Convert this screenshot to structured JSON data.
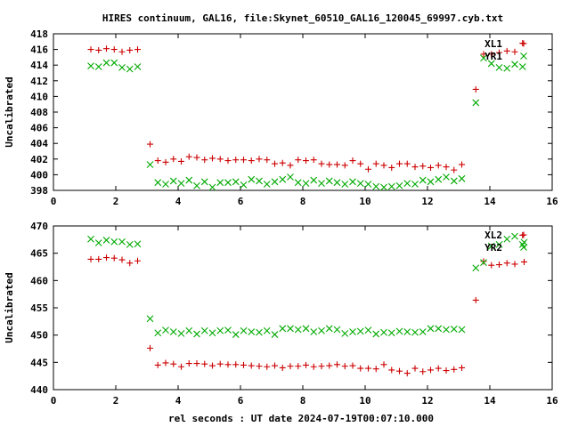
{
  "figure": {
    "title": "HIRES continuum, GAL16, file:Skynet_60510_GAL16_120045_69997.cyb.txt",
    "xlabel": "rel seconds : UT date 2024-07-19T00:07:10.000"
  },
  "colors": {
    "XL1": "#cc0000",
    "YR1": "#00aa00",
    "XL2": "#cc0000",
    "YR2": "#00aa00"
  },
  "chart_data": [
    {
      "type": "scatter",
      "title": "",
      "xlabel": "",
      "ylabel": "Uncalibrated",
      "xlim": [
        0,
        16
      ],
      "ylim": [
        398,
        418
      ],
      "xticks": [
        0,
        2,
        4,
        6,
        8,
        10,
        12,
        14,
        16
      ],
      "yticks": [
        398,
        400,
        402,
        404,
        406,
        408,
        410,
        412,
        414,
        416,
        418
      ],
      "grid": false,
      "legend": "top-right",
      "series": [
        {
          "name": "XL1",
          "marker": "plus",
          "points": [
            [
              1.2,
              416.0
            ],
            [
              1.45,
              415.9
            ],
            [
              1.7,
              416.1
            ],
            [
              1.95,
              416.0
            ],
            [
              2.2,
              415.7
            ],
            [
              2.45,
              415.9
            ],
            [
              2.7,
              416.0
            ],
            [
              3.1,
              403.9
            ],
            [
              3.35,
              401.8
            ],
            [
              3.6,
              401.6
            ],
            [
              3.85,
              402.0
            ],
            [
              4.1,
              401.7
            ],
            [
              4.35,
              402.3
            ],
            [
              4.6,
              402.2
            ],
            [
              4.85,
              401.9
            ],
            [
              5.1,
              402.1
            ],
            [
              5.35,
              402.0
            ],
            [
              5.6,
              401.8
            ],
            [
              5.85,
              401.9
            ],
            [
              6.1,
              401.9
            ],
            [
              6.35,
              401.8
            ],
            [
              6.6,
              402.0
            ],
            [
              6.85,
              401.9
            ],
            [
              7.1,
              401.4
            ],
            [
              7.35,
              401.5
            ],
            [
              7.6,
              401.2
            ],
            [
              7.85,
              401.9
            ],
            [
              8.1,
              401.8
            ],
            [
              8.35,
              401.9
            ],
            [
              8.6,
              401.4
            ],
            [
              8.85,
              401.3
            ],
            [
              9.1,
              401.3
            ],
            [
              9.35,
              401.2
            ],
            [
              9.6,
              401.8
            ],
            [
              9.85,
              401.4
            ],
            [
              10.1,
              400.7
            ],
            [
              10.35,
              401.4
            ],
            [
              10.6,
              401.2
            ],
            [
              10.85,
              400.9
            ],
            [
              11.1,
              401.4
            ],
            [
              11.35,
              401.4
            ],
            [
              11.6,
              401.0
            ],
            [
              11.85,
              401.1
            ],
            [
              12.1,
              400.9
            ],
            [
              12.35,
              401.2
            ],
            [
              12.6,
              401.0
            ],
            [
              12.85,
              400.6
            ],
            [
              13.1,
              401.3
            ],
            [
              13.55,
              410.9
            ],
            [
              13.8,
              415.4
            ],
            [
              14.05,
              415.4
            ],
            [
              14.3,
              415.6
            ],
            [
              14.55,
              415.8
            ],
            [
              14.8,
              415.7
            ],
            [
              15.05,
              416.8
            ]
          ]
        },
        {
          "name": "YR1",
          "marker": "cross",
          "points": [
            [
              1.2,
              413.9
            ],
            [
              1.45,
              413.8
            ],
            [
              1.7,
              414.3
            ],
            [
              1.95,
              414.3
            ],
            [
              2.2,
              413.7
            ],
            [
              2.45,
              413.5
            ],
            [
              2.7,
              413.8
            ],
            [
              3.1,
              401.3
            ],
            [
              3.35,
              399.0
            ],
            [
              3.6,
              398.8
            ],
            [
              3.85,
              399.2
            ],
            [
              4.1,
              398.9
            ],
            [
              4.35,
              399.3
            ],
            [
              4.6,
              398.6
            ],
            [
              4.85,
              399.1
            ],
            [
              5.1,
              398.4
            ],
            [
              5.35,
              399.0
            ],
            [
              5.6,
              399.0
            ],
            [
              5.85,
              399.1
            ],
            [
              6.1,
              398.7
            ],
            [
              6.35,
              399.4
            ],
            [
              6.6,
              399.2
            ],
            [
              6.85,
              398.8
            ],
            [
              7.1,
              399.1
            ],
            [
              7.35,
              399.4
            ],
            [
              7.6,
              399.7
            ],
            [
              7.85,
              399.0
            ],
            [
              8.1,
              398.9
            ],
            [
              8.35,
              399.3
            ],
            [
              8.6,
              398.9
            ],
            [
              8.85,
              399.2
            ],
            [
              9.1,
              399.0
            ],
            [
              9.35,
              398.8
            ],
            [
              9.6,
              399.1
            ],
            [
              9.85,
              398.9
            ],
            [
              10.1,
              398.8
            ],
            [
              10.35,
              398.5
            ],
            [
              10.6,
              398.4
            ],
            [
              10.85,
              398.5
            ],
            [
              11.1,
              398.6
            ],
            [
              11.35,
              398.9
            ],
            [
              11.6,
              398.8
            ],
            [
              11.85,
              399.3
            ],
            [
              12.1,
              399.1
            ],
            [
              12.35,
              399.4
            ],
            [
              12.6,
              399.7
            ],
            [
              12.85,
              399.2
            ],
            [
              13.1,
              399.5
            ],
            [
              13.55,
              409.2
            ],
            [
              13.8,
              414.9
            ],
            [
              14.05,
              414.2
            ],
            [
              14.3,
              413.7
            ],
            [
              14.55,
              413.6
            ],
            [
              14.8,
              414.1
            ],
            [
              15.05,
              413.8
            ]
          ]
        }
      ]
    },
    {
      "type": "scatter",
      "title": "",
      "xlabel": "rel seconds : UT date 2024-07-19T00:07:10.000",
      "ylabel": "Uncalibrated",
      "xlim": [
        0,
        16
      ],
      "ylim": [
        440,
        470
      ],
      "xticks": [
        0,
        2,
        4,
        6,
        8,
        10,
        12,
        14,
        16
      ],
      "yticks": [
        440,
        445,
        450,
        455,
        460,
        465,
        470
      ],
      "grid": false,
      "legend": "top-right",
      "series": [
        {
          "name": "XL2",
          "marker": "plus",
          "points": [
            [
              1.2,
              463.9
            ],
            [
              1.45,
              463.9
            ],
            [
              1.7,
              464.2
            ],
            [
              1.95,
              464.1
            ],
            [
              2.2,
              463.8
            ],
            [
              2.45,
              463.2
            ],
            [
              2.7,
              463.6
            ],
            [
              3.1,
              447.6
            ],
            [
              3.35,
              444.5
            ],
            [
              3.6,
              444.9
            ],
            [
              3.85,
              444.7
            ],
            [
              4.1,
              444.2
            ],
            [
              4.35,
              444.8
            ],
            [
              4.6,
              444.8
            ],
            [
              4.85,
              444.7
            ],
            [
              5.1,
              444.4
            ],
            [
              5.35,
              444.7
            ],
            [
              5.6,
              444.6
            ],
            [
              5.85,
              444.6
            ],
            [
              6.1,
              444.5
            ],
            [
              6.35,
              444.4
            ],
            [
              6.6,
              444.3
            ],
            [
              6.85,
              444.2
            ],
            [
              7.1,
              444.4
            ],
            [
              7.35,
              444.0
            ],
            [
              7.6,
              444.3
            ],
            [
              7.85,
              444.3
            ],
            [
              8.1,
              444.5
            ],
            [
              8.35,
              444.2
            ],
            [
              8.6,
              444.3
            ],
            [
              8.85,
              444.4
            ],
            [
              9.1,
              444.6
            ],
            [
              9.35,
              444.3
            ],
            [
              9.6,
              444.4
            ],
            [
              9.85,
              443.9
            ],
            [
              10.1,
              443.9
            ],
            [
              10.35,
              443.8
            ],
            [
              10.6,
              444.6
            ],
            [
              10.85,
              443.6
            ],
            [
              11.1,
              443.4
            ],
            [
              11.35,
              443.0
            ],
            [
              11.6,
              443.9
            ],
            [
              11.85,
              443.3
            ],
            [
              12.1,
              443.6
            ],
            [
              12.35,
              443.9
            ],
            [
              12.6,
              443.5
            ],
            [
              12.85,
              443.7
            ],
            [
              13.1,
              444.0
            ],
            [
              13.55,
              456.4
            ],
            [
              13.8,
              463.5
            ],
            [
              14.05,
              462.8
            ],
            [
              14.3,
              462.9
            ],
            [
              14.55,
              463.2
            ],
            [
              14.8,
              463.0
            ],
            [
              15.05,
              468.3
            ],
            [
              15.1,
              463.4
            ]
          ]
        },
        {
          "name": "YR2",
          "marker": "cross",
          "points": [
            [
              1.2,
              467.6
            ],
            [
              1.45,
              466.9
            ],
            [
              1.7,
              467.4
            ],
            [
              1.95,
              467.1
            ],
            [
              2.2,
              467.1
            ],
            [
              2.45,
              466.6
            ],
            [
              2.7,
              466.7
            ],
            [
              3.1,
              453.0
            ],
            [
              3.35,
              450.4
            ],
            [
              3.6,
              450.9
            ],
            [
              3.85,
              450.6
            ],
            [
              4.1,
              450.3
            ],
            [
              4.35,
              450.8
            ],
            [
              4.6,
              450.2
            ],
            [
              4.85,
              450.8
            ],
            [
              5.1,
              450.4
            ],
            [
              5.35,
              450.8
            ],
            [
              5.6,
              450.9
            ],
            [
              5.85,
              450.1
            ],
            [
              6.1,
              450.8
            ],
            [
              6.35,
              450.6
            ],
            [
              6.6,
              450.5
            ],
            [
              6.85,
              450.8
            ],
            [
              7.1,
              450.1
            ],
            [
              7.35,
              451.2
            ],
            [
              7.6,
              451.2
            ],
            [
              7.85,
              451.0
            ],
            [
              8.1,
              451.2
            ],
            [
              8.35,
              450.6
            ],
            [
              8.6,
              450.8
            ],
            [
              8.85,
              451.2
            ],
            [
              9.1,
              451.0
            ],
            [
              9.35,
              450.3
            ],
            [
              9.6,
              450.6
            ],
            [
              9.85,
              450.7
            ],
            [
              10.1,
              450.9
            ],
            [
              10.35,
              450.2
            ],
            [
              10.6,
              450.5
            ],
            [
              10.85,
              450.4
            ],
            [
              11.1,
              450.7
            ],
            [
              11.35,
              450.6
            ],
            [
              11.6,
              450.5
            ],
            [
              11.85,
              450.6
            ],
            [
              12.1,
              451.2
            ],
            [
              12.35,
              451.2
            ],
            [
              12.6,
              451.0
            ],
            [
              12.85,
              451.1
            ],
            [
              13.1,
              451.0
            ],
            [
              13.55,
              462.3
            ],
            [
              13.8,
              463.3
            ],
            [
              14.05,
              466.3
            ],
            [
              14.3,
              466.6
            ],
            [
              14.55,
              467.6
            ],
            [
              14.8,
              468.1
            ],
            [
              15.05,
              466.6
            ],
            [
              15.1,
              467.0
            ]
          ]
        }
      ]
    }
  ]
}
